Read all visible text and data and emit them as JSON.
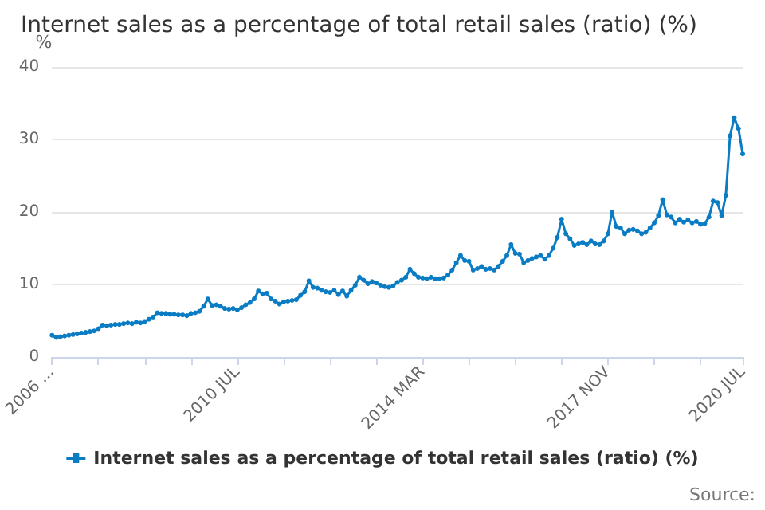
{
  "chart_data": {
    "type": "line",
    "title": "Internet sales as a percentage of total retail sales (ratio) (%)",
    "ylabel": "%",
    "categories": [
      "2006 ...",
      null,
      null,
      null,
      null,
      null,
      null,
      null,
      null,
      null,
      null,
      null,
      null,
      null,
      null,
      null,
      null,
      null,
      null,
      null,
      null,
      null,
      null,
      null,
      null,
      null,
      null,
      null,
      null,
      null,
      null,
      null,
      null,
      null,
      null,
      null,
      null,
      null,
      null,
      null,
      null,
      null,
      null,
      null,
      "2010 JUL",
      null,
      null,
      null,
      null,
      null,
      null,
      null,
      null,
      null,
      null,
      null,
      null,
      null,
      null,
      null,
      null,
      null,
      null,
      null,
      null,
      null,
      null,
      null,
      null,
      null,
      null,
      null,
      null,
      null,
      null,
      null,
      null,
      null,
      null,
      null,
      null,
      null,
      null,
      null,
      null,
      null,
      null,
      null,
      "2014 MAR",
      null,
      null,
      null,
      null,
      null,
      null,
      null,
      null,
      null,
      null,
      null,
      null,
      null,
      null,
      null,
      null,
      null,
      null,
      null,
      null,
      null,
      null,
      null,
      null,
      null,
      null,
      null,
      null,
      null,
      null,
      null,
      null,
      null,
      null,
      null,
      null,
      null,
      null,
      null,
      null,
      null,
      null,
      null,
      "2017 NOV",
      null,
      null,
      null,
      null,
      null,
      null,
      null,
      null,
      null,
      null,
      null,
      null,
      null,
      null,
      null,
      null,
      null,
      null,
      null,
      null,
      null,
      null,
      null,
      null,
      null,
      null,
      null,
      null,
      null,
      null,
      null,
      "2020 JUL"
    ],
    "series": [
      {
        "name": "Internet sales as a percentage of total retail sales (ratio) (%)",
        "color": "#0a7cc4",
        "values": [
          3.0,
          2.7,
          2.8,
          2.9,
          3.0,
          3.1,
          3.2,
          3.3,
          3.4,
          3.5,
          3.6,
          3.9,
          4.4,
          4.3,
          4.4,
          4.5,
          4.5,
          4.6,
          4.7,
          4.6,
          4.8,
          4.7,
          4.9,
          5.2,
          5.5,
          6.1,
          6.0,
          6.0,
          5.9,
          5.9,
          5.8,
          5.8,
          5.7,
          6.0,
          6.1,
          6.3,
          7.0,
          8.0,
          7.1,
          7.2,
          7.0,
          6.7,
          6.6,
          6.7,
          6.5,
          6.8,
          7.2,
          7.5,
          8.0,
          9.1,
          8.7,
          8.8,
          8.0,
          7.7,
          7.3,
          7.6,
          7.7,
          7.8,
          7.9,
          8.5,
          9.0,
          10.5,
          9.6,
          9.5,
          9.2,
          9.0,
          8.9,
          9.2,
          8.6,
          9.1,
          8.4,
          9.2,
          9.9,
          11.0,
          10.6,
          10.1,
          10.4,
          10.2,
          9.9,
          9.7,
          9.6,
          9.8,
          10.3,
          10.6,
          11.0,
          12.1,
          11.5,
          11.0,
          10.9,
          10.8,
          11.0,
          10.8,
          10.8,
          10.9,
          11.3,
          12.0,
          13.0,
          14.0,
          13.3,
          13.2,
          12.0,
          12.2,
          12.5,
          12.1,
          12.2,
          12.0,
          12.5,
          13.2,
          14.0,
          15.5,
          14.3,
          14.2,
          13.0,
          13.3,
          13.6,
          13.8,
          14.0,
          13.5,
          14.0,
          15.0,
          16.5,
          19.0,
          17.0,
          16.3,
          15.4,
          15.6,
          15.8,
          15.5,
          16.0,
          15.6,
          15.5,
          16.0,
          17.0,
          20.0,
          18.0,
          17.8,
          17.0,
          17.5,
          17.6,
          17.4,
          17.0,
          17.2,
          17.8,
          18.5,
          19.5,
          21.7,
          19.6,
          19.3,
          18.5,
          19.0,
          18.6,
          18.9,
          18.5,
          18.7,
          18.3,
          18.4,
          19.3,
          21.5,
          21.3,
          19.5,
          22.3,
          30.5,
          33.0,
          31.5,
          28.0
        ]
      }
    ],
    "ylim": [
      0,
      40
    ],
    "yticks": [
      0,
      10,
      20,
      30,
      40
    ],
    "grid": "y",
    "legend": "bottom",
    "marker": "circle",
    "line_style": "solid",
    "annotations": [
      "Source:"
    ]
  }
}
